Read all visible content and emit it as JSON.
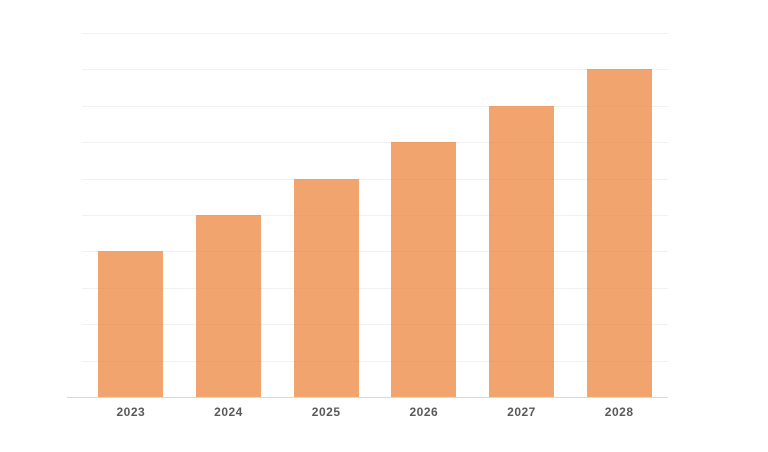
{
  "chart_data": {
    "type": "bar",
    "title": "",
    "xlabel": "",
    "ylabel": "",
    "categories": [
      "2023",
      "2024",
      "2025",
      "2026",
      "2027",
      "2028"
    ],
    "values": [
      4,
      5,
      6,
      7,
      8,
      9
    ],
    "ylim": [
      0,
      10
    ],
    "y_tick_interval": 1,
    "y_tick_labels_visible": false,
    "grid": true,
    "legend": false,
    "colors": {
      "bar_fill": "#F2A46E",
      "bar_fill_rgba": "rgba(237,125,49,0.70)",
      "gridline": "#F1F1F1",
      "axis_line": "#D9D9D9",
      "label_text": "#595959",
      "background": "#FFFFFF"
    }
  }
}
